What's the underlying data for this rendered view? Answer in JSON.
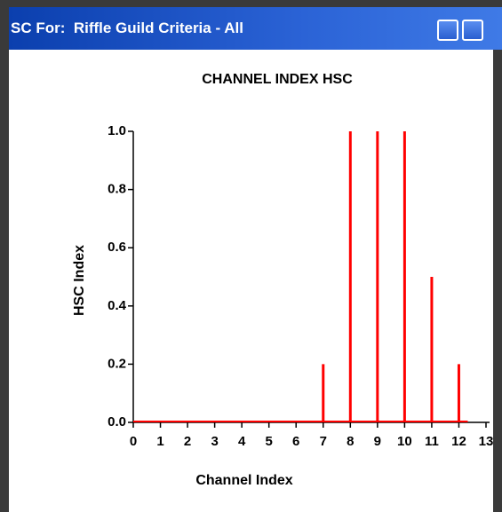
{
  "window": {
    "title": "SC For:  Riffle Guild Criteria - All"
  },
  "chart_data": {
    "type": "bar",
    "title": "CHANNEL INDEX HSC",
    "x_label": "Channel Index",
    "y_label": "HSC Index",
    "x": [
      0,
      1,
      2,
      3,
      4,
      5,
      6,
      7,
      8,
      9,
      10,
      11,
      12
    ],
    "values": [
      0,
      0,
      0,
      0,
      0,
      0,
      0,
      0.2,
      1,
      1,
      1,
      0.5,
      0.2
    ],
    "color": "#ff0000",
    "xlim": [
      0,
      13
    ],
    "xticks": [
      0,
      1,
      2,
      3,
      4,
      5,
      6,
      7,
      8,
      9,
      10,
      11,
      12,
      13
    ],
    "ylim": [
      0,
      1
    ],
    "yticks": [
      {
        "value": 0,
        "label": "0.0"
      },
      0.2,
      0.4,
      0.6,
      0.8,
      {
        "value": 1,
        "label": "1.0"
      }
    ]
  }
}
